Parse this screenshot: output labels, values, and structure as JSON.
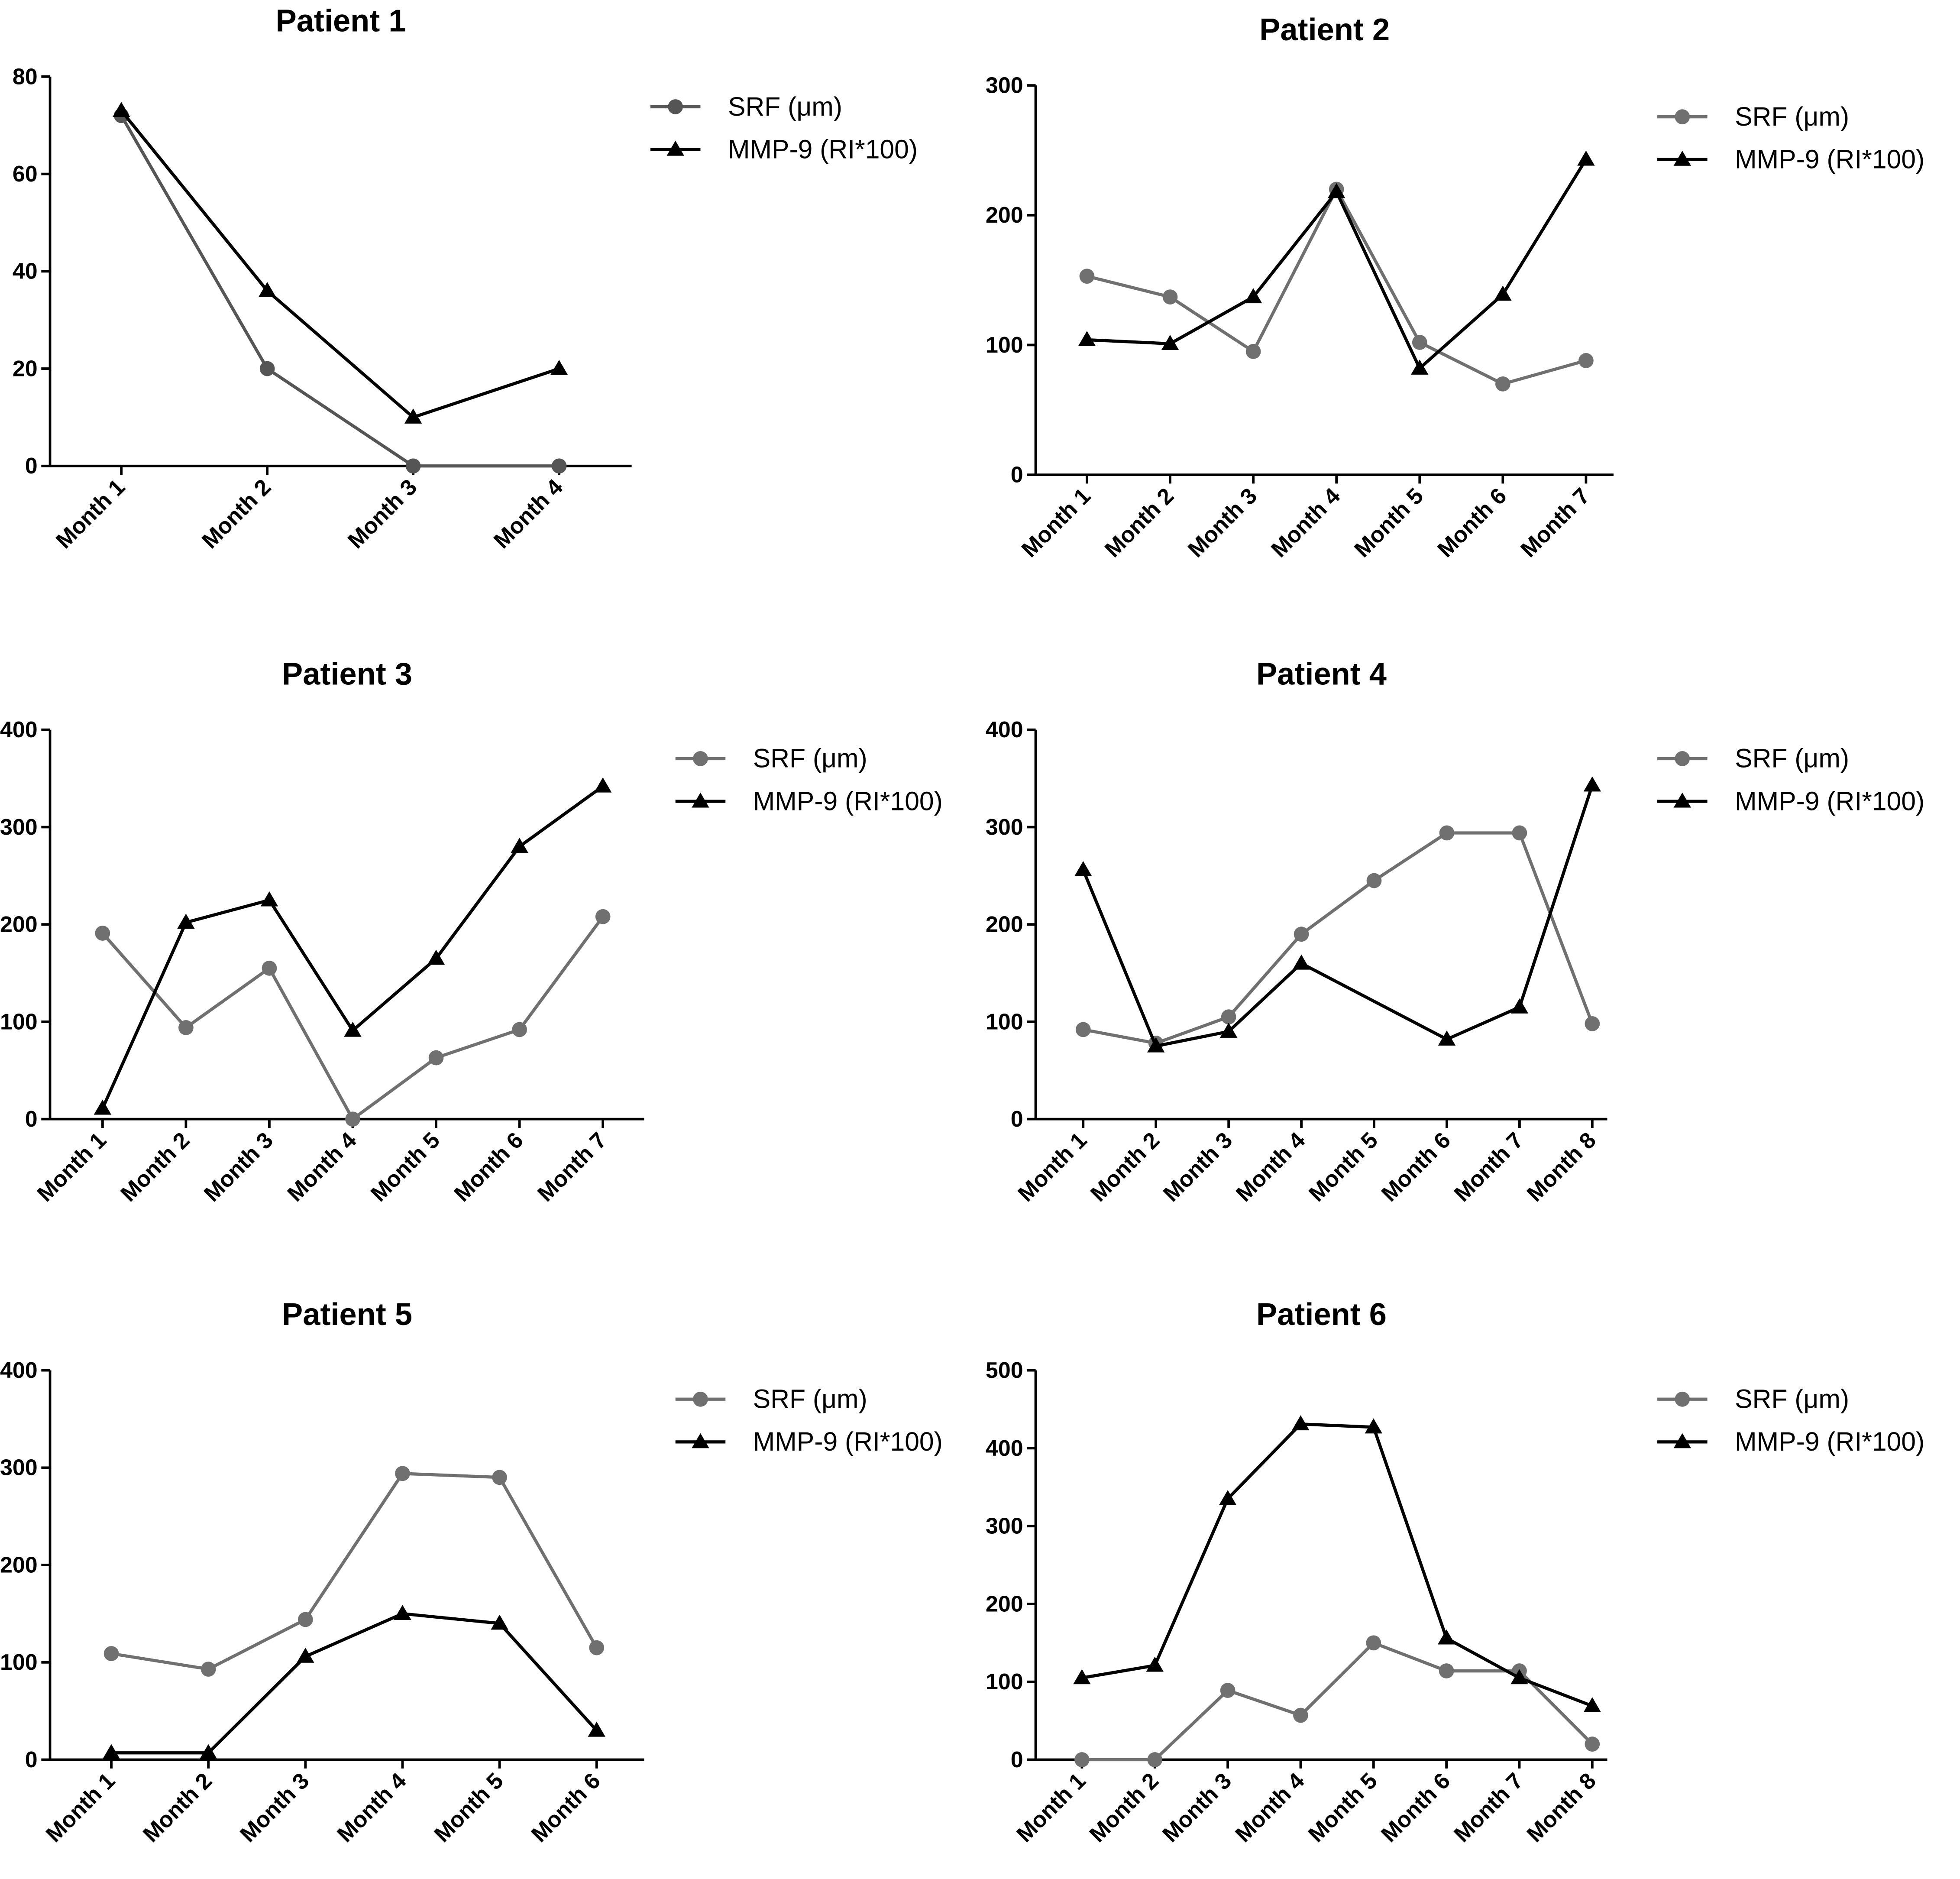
{
  "chart_data": [
    {
      "type": "line",
      "title": "Patient 1",
      "categories": [
        "Month 1",
        "Month 2",
        "Month 3",
        "Month 4"
      ],
      "series": [
        {
          "name": "SRF (μm)",
          "color": "#555555",
          "marker": "circle",
          "values": [
            72,
            20,
            0,
            0
          ]
        },
        {
          "name": "MMP-9 (RI*100)",
          "color": "#000000",
          "marker": "triangle",
          "values": [
            73,
            36,
            10,
            20
          ]
        }
      ],
      "ylim": [
        0,
        80
      ],
      "yticks": [
        0,
        20,
        40,
        60,
        80
      ]
    },
    {
      "type": "line",
      "title": "Patient 2",
      "categories": [
        "Month 1",
        "Month 2",
        "Month 3",
        "Month 4",
        "Month 5",
        "Month 6",
        "Month 7"
      ],
      "series": [
        {
          "name": "SRF (μm)",
          "color": "#707070",
          "marker": "circle",
          "values": [
            153,
            137,
            95,
            220,
            102,
            70,
            88
          ]
        },
        {
          "name": "MMP-9 (RI*100)",
          "color": "#000000",
          "marker": "triangle",
          "values": [
            104,
            101,
            137,
            218,
            82,
            139,
            243
          ]
        }
      ],
      "ylim": [
        0,
        300
      ],
      "yticks": [
        0,
        100,
        200,
        300
      ]
    },
    {
      "type": "line",
      "title": "Patient 3",
      "categories": [
        "Month 1",
        "Month 2",
        "Month 3",
        "Month 4",
        "Month 5",
        "Month 6",
        "Month 7"
      ],
      "series": [
        {
          "name": "SRF (μm)",
          "color": "#707070",
          "marker": "circle",
          "values": [
            191,
            94,
            155,
            0,
            63,
            92,
            208
          ]
        },
        {
          "name": "MMP-9 (RI*100)",
          "color": "#000000",
          "marker": "triangle",
          "values": [
            11,
            202,
            225,
            91,
            165,
            280,
            342
          ]
        }
      ],
      "ylim": [
        0,
        400
      ],
      "yticks": [
        0,
        100,
        200,
        300,
        400
      ]
    },
    {
      "type": "line",
      "title": "Patient 4",
      "categories": [
        "Month 1",
        "Month 2",
        "Month 3",
        "Month 4",
        "Month 5",
        "Month 6",
        "Month 7",
        "Month 8"
      ],
      "series": [
        {
          "name": "SRF (μm)",
          "color": "#707070",
          "marker": "circle",
          "values": [
            92,
            78,
            105,
            190,
            245,
            294,
            294,
            98
          ]
        },
        {
          "name": "MMP-9 (RI*100)",
          "color": "#000000",
          "marker": "triangle",
          "values": [
            256,
            75,
            90,
            160,
            null,
            82,
            115,
            343
          ]
        }
      ],
      "ylim": [
        0,
        400
      ],
      "yticks": [
        0,
        100,
        200,
        300,
        400
      ]
    },
    {
      "type": "line",
      "title": "Patient 5",
      "categories": [
        "Month 1",
        "Month 2",
        "Month 3",
        "Month 4",
        "Month 5",
        "Month 6"
      ],
      "series": [
        {
          "name": "SRF (μm)",
          "color": "#707070",
          "marker": "circle",
          "values": [
            109,
            93,
            144,
            294,
            290,
            115
          ]
        },
        {
          "name": "MMP-9 (RI*100)",
          "color": "#000000",
          "marker": "triangle",
          "values": [
            7,
            7,
            106,
            150,
            140,
            30
          ]
        }
      ],
      "ylim": [
        0,
        400
      ],
      "yticks": [
        0,
        100,
        200,
        300,
        400
      ]
    },
    {
      "type": "line",
      "title": "Patient 6",
      "categories": [
        "Month 1",
        "Month 2",
        "Month 3",
        "Month 4",
        "Month 5",
        "Month 6",
        "Month 7",
        "Month 8"
      ],
      "series": [
        {
          "name": "SRF (μm)",
          "color": "#707070",
          "marker": "circle",
          "values": [
            0,
            0,
            89,
            57,
            150,
            114,
            114,
            20
          ]
        },
        {
          "name": "MMP-9 (RI*100)",
          "color": "#000000",
          "marker": "triangle",
          "values": [
            105,
            121,
            335,
            431,
            427,
            156,
            105,
            69
          ]
        }
      ],
      "ylim": [
        0,
        500
      ],
      "yticks": [
        0,
        100,
        200,
        300,
        400,
        500
      ]
    }
  ]
}
